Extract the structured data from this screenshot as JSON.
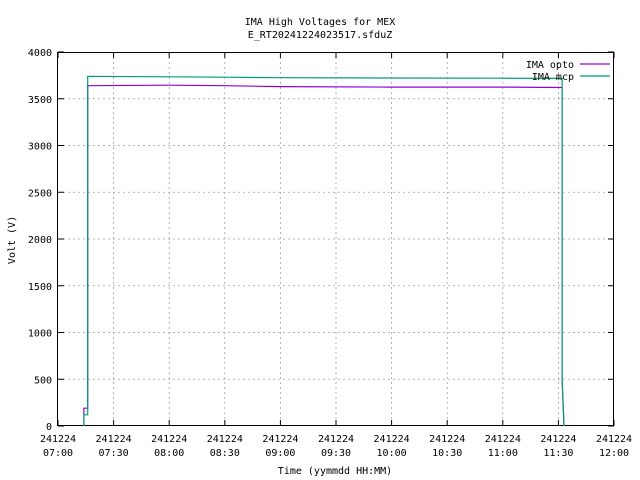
{
  "chart_data": {
    "type": "line",
    "title": "IMA High Voltages for MEX",
    "subtitle": "E_RT20241224023517.sfduZ",
    "xlabel": "Time (yymmdd HH:MM)",
    "ylabel": "Volt (V)",
    "xlim": [
      "241224 07:00",
      "241224 12:00"
    ],
    "ylim": [
      0,
      4000
    ],
    "grid": true,
    "legend_position": "top-right",
    "x_ticks": [
      [
        "241224",
        "07:00"
      ],
      [
        "241224",
        "07:30"
      ],
      [
        "241224",
        "08:00"
      ],
      [
        "241224",
        "08:30"
      ],
      [
        "241224",
        "09:00"
      ],
      [
        "241224",
        "09:30"
      ],
      [
        "241224",
        "10:00"
      ],
      [
        "241224",
        "10:30"
      ],
      [
        "241224",
        "11:00"
      ],
      [
        "241224",
        "11:30"
      ],
      [
        "241224",
        "12:00"
      ]
    ],
    "y_ticks": [
      "0",
      "500",
      "1000",
      "1500",
      "2000",
      "2500",
      "3000",
      "3500",
      "4000"
    ],
    "series": [
      {
        "name": "IMA opto",
        "color": "#9400d3",
        "points": [
          [
            "241224 07:14",
            0
          ],
          [
            "241224 07:14",
            190
          ],
          [
            "241224 07:16",
            190
          ],
          [
            "241224 07:16",
            3640
          ],
          [
            "241224 08:00",
            3645
          ],
          [
            "241224 08:30",
            3640
          ],
          [
            "241224 09:00",
            3630
          ],
          [
            "241224 10:00",
            3625
          ],
          [
            "241224 11:00",
            3625
          ],
          [
            "241224 11:32",
            3620
          ],
          [
            "241224 11:32",
            500
          ],
          [
            "241224 11:33",
            0
          ]
        ]
      },
      {
        "name": "IMA mcp",
        "color": "#009e73",
        "points": [
          [
            "241224 07:14",
            0
          ],
          [
            "241224 07:14",
            120
          ],
          [
            "241224 07:16",
            120
          ],
          [
            "241224 07:16",
            3740
          ],
          [
            "241224 08:00",
            3735
          ],
          [
            "241224 08:30",
            3730
          ],
          [
            "241224 09:00",
            3725
          ],
          [
            "241224 10:00",
            3722
          ],
          [
            "241224 11:00",
            3720
          ],
          [
            "241224 11:32",
            3718
          ],
          [
            "241224 11:32",
            500
          ],
          [
            "241224 11:33",
            0
          ]
        ]
      }
    ]
  }
}
